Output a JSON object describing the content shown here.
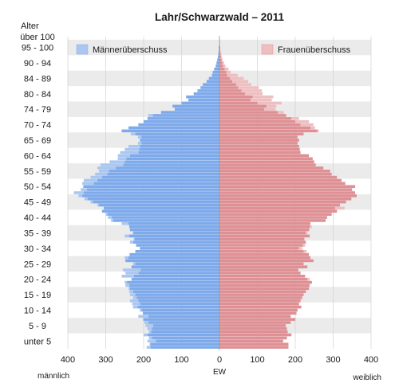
{
  "chart_data": {
    "type": "bar",
    "orientation": "horizontal-population-pyramid",
    "title": "Lahr/Schwarzwald – 2011",
    "y_axis_title": "Alter",
    "x_axis_title": "EW",
    "left_label": "männlich",
    "right_label": "weiblich",
    "x_ticks": [
      400,
      300,
      200,
      100,
      0,
      100,
      200,
      300,
      400
    ],
    "xlim": [
      -400,
      400
    ],
    "age_groups": [
      "unter 5",
      "5 - 9",
      "10 - 14",
      "15 - 19",
      "20 - 24",
      "25 - 29",
      "30 - 34",
      "35 - 39",
      "40 - 44",
      "45 - 49",
      "50 - 54",
      "55 - 59",
      "60 - 64",
      "65 - 69",
      "70 - 74",
      "74 - 79",
      "80 - 84",
      "84 - 89",
      "90 - 94",
      "95 - 100",
      "über 100"
    ],
    "age_range": [
      0,
      101
    ],
    "legend": {
      "male_surplus": "Männerüberschuss",
      "female_surplus": "Frauenüberschuss"
    },
    "colors": {
      "male": "#7eaaeb",
      "male_surplus": "#aac7f1",
      "female": "#de9094",
      "female_surplus": "#eebfc1",
      "band": "#ebebeb"
    },
    "series": [
      {
        "name": "männlich",
        "values": [
          192,
          184,
          190,
          186,
          200,
          186,
          190,
          195,
          198,
          202,
          214,
          202,
          210,
          228,
          230,
          236,
          228,
          236,
          238,
          240,
          248,
          250,
          232,
          258,
          248,
          255,
          232,
          228,
          248,
          250,
          238,
          222,
          210,
          220,
          236,
          226,
          250,
          228,
          236,
          238,
          258,
          286,
          294,
          300,
          310,
          305,
          322,
          340,
          356,
          372,
          384,
          366,
          360,
          362,
          358,
          340,
          328,
          318,
          322,
          314,
          290,
          268,
          268,
          262,
          250,
          240,
          215,
          210,
          215,
          234,
          258,
          240,
          214,
          200,
          190,
          188,
          154,
          118,
          124,
          100,
          82,
          88,
          68,
          58,
          50,
          44,
          34,
          28,
          20,
          18,
          14,
          10,
          8,
          6,
          4,
          3,
          2,
          2,
          1,
          1,
          0
        ]
      },
      {
        "name": "weiblich",
        "values": [
          182,
          182,
          168,
          178,
          190,
          180,
          178,
          175,
          188,
          200,
          188,
          204,
          206,
          216,
          210,
          214,
          218,
          222,
          228,
          236,
          238,
          244,
          238,
          226,
          214,
          208,
          232,
          222,
          248,
          240,
          236,
          230,
          218,
          226,
          228,
          224,
          238,
          232,
          238,
          244,
          240,
          280,
          284,
          296,
          310,
          330,
          318,
          334,
          348,
          362,
          358,
          350,
          358,
          332,
          322,
          310,
          296,
          292,
          274,
          254,
          250,
          246,
          236,
          214,
          212,
          210,
          206,
          210,
          206,
          222,
          262,
          252,
          248,
          236,
          210,
          176,
          170,
          148,
          150,
          164,
          138,
          142,
          114,
          112,
          104,
          84,
          76,
          64,
          48,
          30,
          24,
          16,
          12,
          8,
          6,
          5,
          3,
          2,
          1,
          1,
          0
        ]
      }
    ]
  }
}
